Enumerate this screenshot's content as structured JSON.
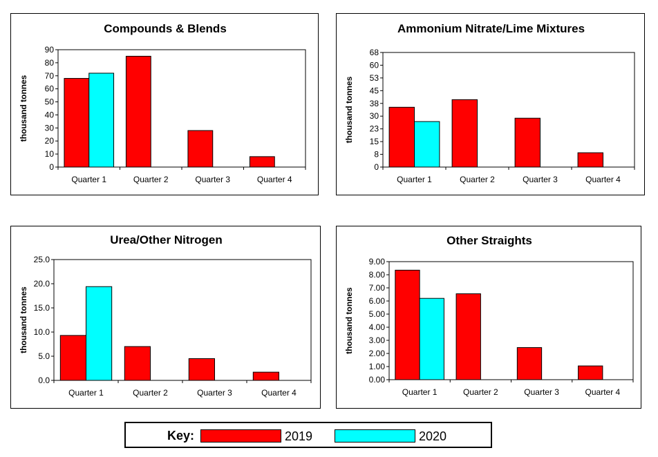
{
  "colors": {
    "2019": "#ff0000",
    "2020": "#00ffff"
  },
  "key": {
    "label": "Key:",
    "year_2019": "2019",
    "year_2020": "2020"
  },
  "chart_data": [
    {
      "type": "bar",
      "title": "Compounds & Blends",
      "ylabel": "thousand tonnes",
      "categories": [
        "Quarter 1",
        "Quarter 2",
        "Quarter 3",
        "Quarter 4"
      ],
      "series": [
        {
          "name": "2019",
          "values": [
            68,
            85,
            28,
            8
          ]
        },
        {
          "name": "2020",
          "values": [
            72,
            null,
            null,
            null
          ]
        }
      ],
      "ylim": [
        0,
        90
      ],
      "yticks": [
        "0",
        "10",
        "20",
        "30",
        "40",
        "50",
        "60",
        "70",
        "80",
        "90"
      ],
      "grid": false
    },
    {
      "type": "bar",
      "title": "Ammonium Nitrate/Lime Mixtures",
      "ylabel": "thousand tonnes",
      "categories": [
        "Quarter 1",
        "Quarter 2",
        "Quarter 3",
        "Quarter 4"
      ],
      "series": [
        {
          "name": "2019",
          "values": [
            35.5,
            40,
            29,
            8.5
          ]
        },
        {
          "name": "2020",
          "values": [
            27,
            null,
            null,
            null
          ]
        }
      ],
      "ylim": [
        0,
        68
      ],
      "yticks": [
        "0",
        "8",
        "15",
        "23",
        "30",
        "38",
        "45",
        "53",
        "60",
        "68"
      ],
      "grid": false
    },
    {
      "type": "bar",
      "title": "Urea/Other Nitrogen",
      "ylabel": "thousand tonnes",
      "categories": [
        "Quarter 1",
        "Quarter 2",
        "Quarter 3",
        "Quarter 4"
      ],
      "series": [
        {
          "name": "2019",
          "values": [
            9.3,
            7.0,
            4.5,
            1.7
          ]
        },
        {
          "name": "2020",
          "values": [
            19.4,
            null,
            null,
            null
          ]
        }
      ],
      "ylim": [
        0,
        25
      ],
      "yticks": [
        "0.0",
        "5.0",
        "10.0",
        "15.0",
        "20.0",
        "25.0"
      ],
      "grid": false
    },
    {
      "type": "bar",
      "title": "Other Straights",
      "ylabel": "thousand tonnes",
      "categories": [
        "Quarter 1",
        "Quarter 2",
        "Quarter 3",
        "Quarter 4"
      ],
      "series": [
        {
          "name": "2019",
          "values": [
            8.35,
            6.55,
            2.45,
            1.05
          ]
        },
        {
          "name": "2020",
          "values": [
            6.2,
            null,
            null,
            null
          ]
        }
      ],
      "ylim": [
        0,
        9
      ],
      "yticks": [
        "0.00",
        "1.00",
        "2.00",
        "3.00",
        "4.00",
        "5.00",
        "6.00",
        "7.00",
        "8.00",
        "9.00"
      ],
      "grid": false
    }
  ]
}
